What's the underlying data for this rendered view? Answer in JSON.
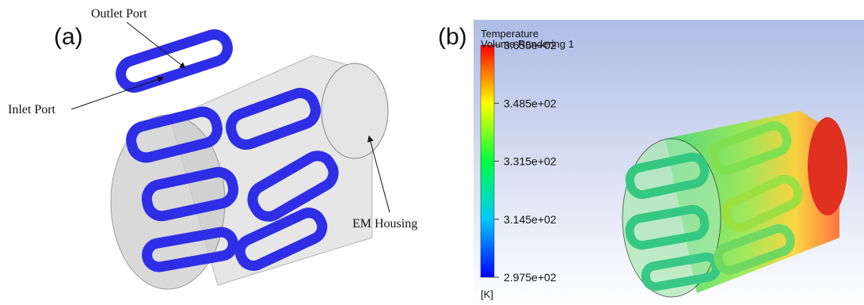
{
  "panel_a": {
    "label": "(a)",
    "annotations": [
      "Outlet Port",
      "Inlet Port",
      "EM Housing"
    ]
  },
  "panel_b": {
    "label": "(b)",
    "legend": {
      "title": "Temperature",
      "subtitle": "Volume Rendering 1",
      "range": [
        297.5,
        365.5
      ],
      "ticks": [
        {
          "value": 365.5,
          "label": "3.655e+02"
        },
        {
          "value": 348.5,
          "label": "3.485e+02"
        },
        {
          "value": 331.5,
          "label": "3.315e+02"
        },
        {
          "value": 314.5,
          "label": "3.145e+02"
        },
        {
          "value": 297.5,
          "label": "2.975e+02"
        }
      ],
      "unit": "[K]"
    }
  }
}
